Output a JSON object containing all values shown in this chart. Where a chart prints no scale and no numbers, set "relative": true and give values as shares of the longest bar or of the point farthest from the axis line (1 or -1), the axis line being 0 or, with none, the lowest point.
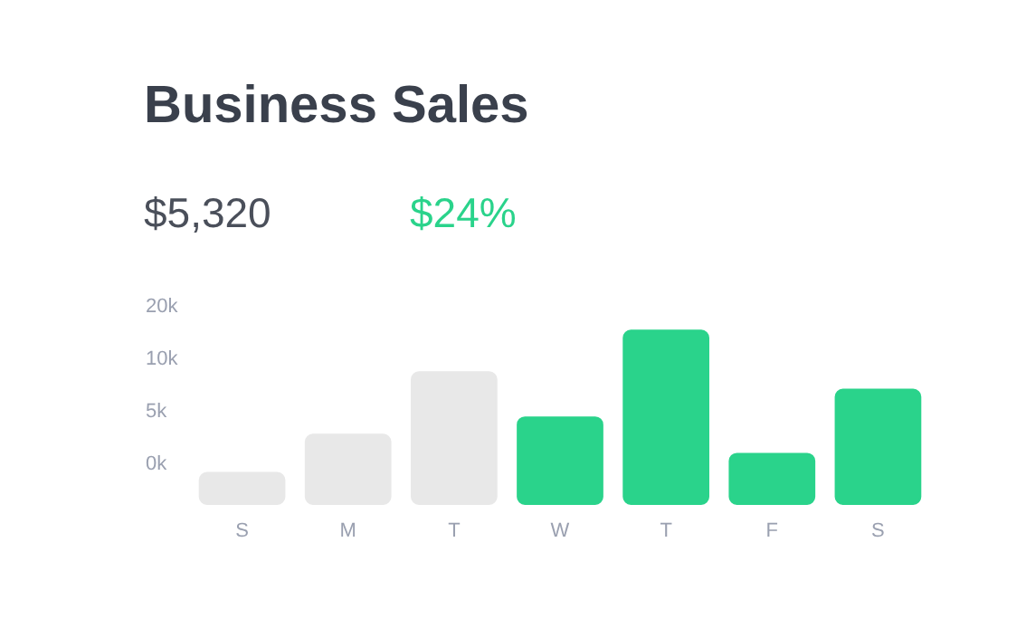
{
  "chart_data": {
    "type": "bar",
    "title": "Business Sales",
    "subtitle": "$5,320",
    "annotations": [
      "$24%",
      "20k",
      "10k",
      "5k",
      "0k"
    ],
    "categories": [
      "S",
      "M",
      "T",
      "W",
      "T",
      "F",
      "S"
    ],
    "relative": true,
    "values": [
      0.18,
      0.4,
      0.76,
      0.5,
      1,
      0.29,
      0.66
    ],
    "colors": [
      "#e8e8e8",
      "#e8e8e8",
      "#e8e8e8",
      "#2ad38b",
      "#2ad38b",
      "#2ad38b",
      "#2ad38b"
    ],
    "grid": false,
    "legend": false
  }
}
